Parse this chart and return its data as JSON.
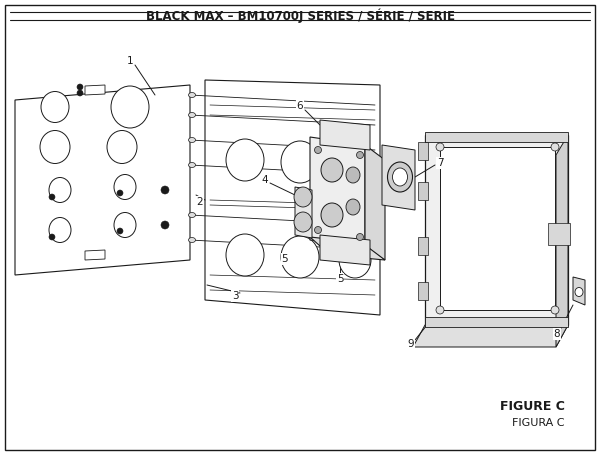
{
  "title": "BLACK MAX – BM10700J SERIES / SÉRIE / SERIE",
  "figure_label": "FIGURE C",
  "figura_label": "FIGURA C",
  "bg_color": "#ffffff",
  "line_color": "#1a1a1a",
  "title_fontsize": 8.5,
  "figure_label_fontsize": 9,
  "figurac_fontsize": 8
}
